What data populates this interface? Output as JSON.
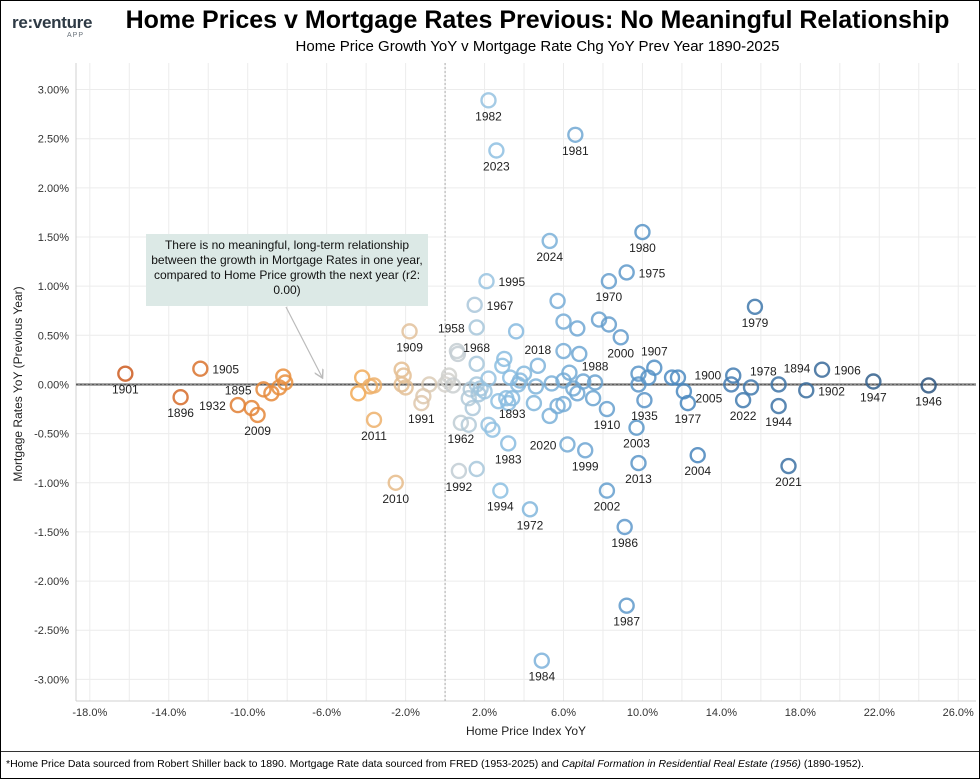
{
  "logo": {
    "main": "re:venture",
    "sub": "APP"
  },
  "title": "Home Prices v Mortgage Rates Previous: No Meaningful Relationship",
  "subtitle": "Home Price Growth YoY v Mortgage Rate Chg YoY Prev Year 1890-2025",
  "annotation": "There is no meaningful, long-term relationship between the growth in Mortgage Rates in one year, compared to Home Price growth the next year (r2: 0.00)",
  "footnote": {
    "part1": "*Home Price Data sourced from Robert Shiller back to 1890. Mortgage Rate data sourced from FRED (1953-2025) and ",
    "italic": "Capital Formation in Residential Real Estate (1956)",
    "part2": " (1890-1952)."
  },
  "colors": {
    "orange_dark": "#cc5a1f",
    "orange": "#f5a54a",
    "neutral": "#d6d2cc",
    "blue_light": "#8fc1e3",
    "blue": "#4a88c0",
    "blue_dark": "#2b5580",
    "annotation_bg": "#dce9e6"
  },
  "chart_data": {
    "type": "scatter",
    "title": "Home Prices v Mortgage Rates Previous: No Meaningful Relationship",
    "xlabel": "Home Price Index YoY",
    "ylabel": "Mortgage Rates YoY (Previous Year)",
    "xlim": [
      -18.7,
      26.9
    ],
    "ylim": [
      -3.22,
      3.27
    ],
    "x_unit": "%",
    "y_unit": "%",
    "x_ticks": [
      "-18.0%",
      "-14.0%",
      "-10.0%",
      "-6.0%",
      "-2.0%",
      "2.0%",
      "6.0%",
      "10.0%",
      "14.0%",
      "18.0%",
      "22.0%",
      "26.0%"
    ],
    "x_tick_values": [
      -18,
      -14,
      -10,
      -6,
      -2,
      2,
      6,
      10,
      14,
      18,
      22,
      26
    ],
    "y_ticks": [
      "3.00%",
      "2.50%",
      "2.00%",
      "1.50%",
      "1.00%",
      "0.50%",
      "0.00%",
      "-0.50%",
      "-1.00%",
      "-1.50%",
      "-2.00%",
      "-2.50%",
      "-3.00%"
    ],
    "y_tick_values": [
      3,
      2.5,
      2,
      1.5,
      1,
      0.5,
      0,
      -0.5,
      -1,
      -1.5,
      -2,
      -2.5,
      -3
    ],
    "grid": true,
    "trend_line": {
      "slope": 0,
      "intercept": 0,
      "r2": 0.0
    },
    "points": [
      {
        "x": -16.2,
        "y": 0.11,
        "year": "1901"
      },
      {
        "x": -12.4,
        "y": 0.16,
        "year": "1905"
      },
      {
        "x": -13.4,
        "y": -0.13,
        "year": "1896"
      },
      {
        "x": -10.5,
        "y": -0.21,
        "year": "1932"
      },
      {
        "x": -9.8,
        "y": -0.24
      },
      {
        "x": -9.5,
        "y": -0.31,
        "year": "2009"
      },
      {
        "x": -9.2,
        "y": -0.05,
        "year": "1895"
      },
      {
        "x": -8.8,
        "y": -0.09
      },
      {
        "x": -8.4,
        "y": -0.03
      },
      {
        "x": -8.2,
        "y": 0.08
      },
      {
        "x": -8.1,
        "y": 0.02
      },
      {
        "x": -4.2,
        "y": 0.07
      },
      {
        "x": -4.4,
        "y": -0.09
      },
      {
        "x": -3.8,
        "y": -0.02
      },
      {
        "x": -3.6,
        "y": -0.01
      },
      {
        "x": -3.6,
        "y": -0.36,
        "year": "2011"
      },
      {
        "x": -2.5,
        "y": -1.0,
        "year": "2010"
      },
      {
        "x": -2.2,
        "y": 0.15
      },
      {
        "x": -2.1,
        "y": 0.09
      },
      {
        "x": -2.2,
        "y": 0.0
      },
      {
        "x": -2.0,
        "y": -0.03
      },
      {
        "x": -1.8,
        "y": 0.54,
        "year": "1909"
      },
      {
        "x": -0.8,
        "y": 0.0
      },
      {
        "x": -1.1,
        "y": -0.12
      },
      {
        "x": -1.2,
        "y": -0.19,
        "year": "1991"
      },
      {
        "x": 0.0,
        "y": 0.0
      },
      {
        "x": 0.15,
        "y": 0.04
      },
      {
        "x": 0.2,
        "y": 0.09
      },
      {
        "x": 0.4,
        "y": -0.01
      },
      {
        "x": 0.6,
        "y": 0.34
      },
      {
        "x": 0.65,
        "y": 0.31
      },
      {
        "x": 0.8,
        "y": -0.39,
        "year": "1962"
      },
      {
        "x": 0.7,
        "y": -0.88,
        "year": "1992"
      },
      {
        "x": 1.2,
        "y": -0.41
      },
      {
        "x": 1.6,
        "y": -0.86
      },
      {
        "x": 1.2,
        "y": -0.14
      },
      {
        "x": 1.3,
        "y": -0.05
      },
      {
        "x": 1.4,
        "y": -0.24
      },
      {
        "x": 1.6,
        "y": 0.0
      },
      {
        "x": 1.7,
        "y": -0.1
      },
      {
        "x": 1.8,
        "y": -0.04
      },
      {
        "x": 2.0,
        "y": -0.07
      },
      {
        "x": 2.2,
        "y": 0.06
      },
      {
        "x": 1.6,
        "y": 0.21,
        "year": "1968"
      },
      {
        "x": 1.6,
        "y": 0.58,
        "year": "1958"
      },
      {
        "x": 1.5,
        "y": 0.81,
        "year": "1967"
      },
      {
        "x": 2.1,
        "y": 1.05,
        "year": "1995"
      },
      {
        "x": 2.2,
        "y": 2.89,
        "year": "1982"
      },
      {
        "x": 2.6,
        "y": 2.38,
        "year": "2023"
      },
      {
        "x": 2.2,
        "y": -0.41
      },
      {
        "x": 2.4,
        "y": -0.46
      },
      {
        "x": 2.7,
        "y": -0.17
      },
      {
        "x": 2.8,
        "y": -1.08,
        "year": "1994"
      },
      {
        "x": 2.9,
        "y": 0.19
      },
      {
        "x": 3.0,
        "y": 0.26
      },
      {
        "x": 3.1,
        "y": -0.14
      },
      {
        "x": 3.2,
        "y": -0.19
      },
      {
        "x": 3.2,
        "y": -0.6,
        "year": "1983"
      },
      {
        "x": 3.3,
        "y": 0.07
      },
      {
        "x": 3.4,
        "y": -0.14,
        "year": "1893"
      },
      {
        "x": 3.6,
        "y": 0.54
      },
      {
        "x": 3.7,
        "y": 0.0
      },
      {
        "x": 3.8,
        "y": 0.04
      },
      {
        "x": 4.0,
        "y": 0.11
      },
      {
        "x": 4.3,
        "y": -1.27,
        "year": "1972"
      },
      {
        "x": 4.5,
        "y": -0.19
      },
      {
        "x": 4.6,
        "y": -0.02
      },
      {
        "x": 4.7,
        "y": 0.19,
        "year": "2018"
      },
      {
        "x": 4.9,
        "y": -2.81,
        "year": "1984"
      },
      {
        "x": 5.3,
        "y": 1.46,
        "year": "2024"
      },
      {
        "x": 5.3,
        "y": -0.32
      },
      {
        "x": 5.4,
        "y": 0.01
      },
      {
        "x": 5.7,
        "y": 0.85
      },
      {
        "x": 5.7,
        "y": -0.22
      },
      {
        "x": 6.0,
        "y": 0.64
      },
      {
        "x": 6.0,
        "y": 0.34
      },
      {
        "x": 6.0,
        "y": 0.04
      },
      {
        "x": 6.0,
        "y": -0.2
      },
      {
        "x": 6.2,
        "y": -0.61,
        "year": "2020"
      },
      {
        "x": 6.3,
        "y": 0.12
      },
      {
        "x": 6.5,
        "y": -0.04
      },
      {
        "x": 6.6,
        "y": 2.54,
        "year": "1981"
      },
      {
        "x": 6.7,
        "y": 0.57
      },
      {
        "x": 6.7,
        "y": -0.09
      },
      {
        "x": 6.8,
        "y": 0.31
      },
      {
        "x": 7.0,
        "y": 0.03
      },
      {
        "x": 7.1,
        "y": -0.67,
        "year": "1999"
      },
      {
        "x": 7.5,
        "y": -0.14
      },
      {
        "x": 7.6,
        "y": 0.02,
        "year": "1988"
      },
      {
        "x": 7.8,
        "y": 0.66
      },
      {
        "x": 8.2,
        "y": -0.25,
        "year": "1910"
      },
      {
        "x": 8.2,
        "y": -1.08,
        "year": "2002"
      },
      {
        "x": 8.3,
        "y": 0.61
      },
      {
        "x": 8.3,
        "y": 1.05,
        "year": "1970"
      },
      {
        "x": 8.9,
        "y": 0.48,
        "year": "2000"
      },
      {
        "x": 9.1,
        "y": -1.45,
        "year": "1986"
      },
      {
        "x": 9.2,
        "y": 1.14,
        "year": "1975"
      },
      {
        "x": 9.2,
        "y": -2.25,
        "year": "1987"
      },
      {
        "x": 9.7,
        "y": -0.44,
        "year": "2003"
      },
      {
        "x": 9.8,
        "y": -0.8,
        "year": "2013"
      },
      {
        "x": 9.8,
        "y": 0.0
      },
      {
        "x": 9.8,
        "y": 0.11
      },
      {
        "x": 10.0,
        "y": 1.55,
        "year": "1980"
      },
      {
        "x": 10.1,
        "y": -0.16,
        "year": "1935"
      },
      {
        "x": 10.3,
        "y": 0.07
      },
      {
        "x": 10.6,
        "y": 0.17,
        "year": "1907"
      },
      {
        "x": 11.5,
        "y": 0.07
      },
      {
        "x": 11.8,
        "y": 0.07
      },
      {
        "x": 12.1,
        "y": -0.07
      },
      {
        "x": 12.3,
        "y": -0.19,
        "year": "1977"
      },
      {
        "x": 12.8,
        "y": -0.72,
        "year": "2004"
      },
      {
        "x": 14.6,
        "y": 0.09,
        "year": "1900"
      },
      {
        "x": 14.5,
        "y": 0.0,
        "year": "2005"
      },
      {
        "x": 15.1,
        "y": -0.16,
        "year": "2022"
      },
      {
        "x": 15.5,
        "y": -0.03,
        "year": "1978"
      },
      {
        "x": 15.7,
        "y": 0.79,
        "year": "1979"
      },
      {
        "x": 16.9,
        "y": 0.0,
        "year": "1894"
      },
      {
        "x": 16.9,
        "y": -0.22,
        "year": "1944"
      },
      {
        "x": 17.4,
        "y": -0.83,
        "year": "2021"
      },
      {
        "x": 18.3,
        "y": -0.06,
        "year": "1902"
      },
      {
        "x": 19.1,
        "y": 0.15,
        "year": "1906"
      },
      {
        "x": 21.7,
        "y": 0.03,
        "year": "1947"
      },
      {
        "x": 24.5,
        "y": -0.01,
        "year": "1946"
      }
    ]
  }
}
